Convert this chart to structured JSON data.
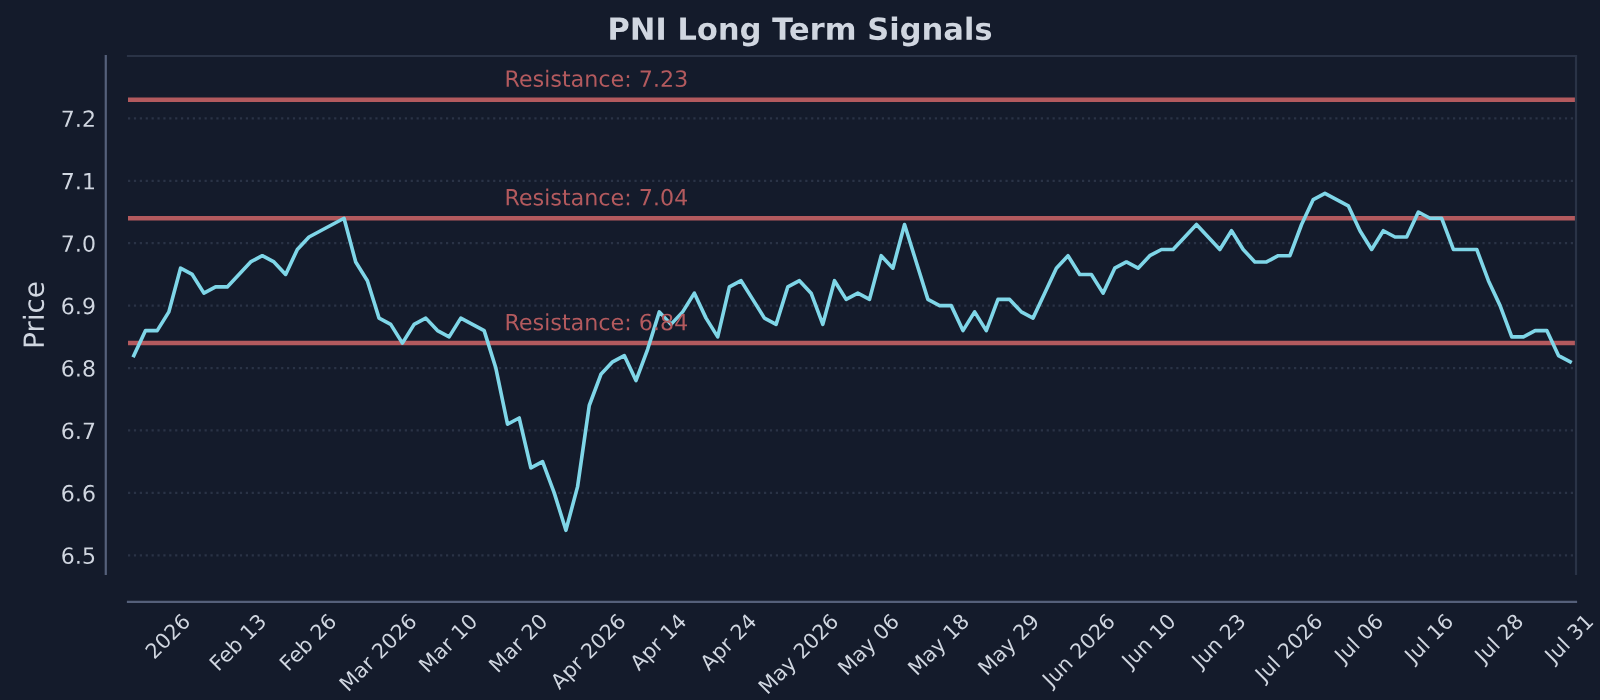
{
  "chart_data": {
    "type": "line",
    "title": "PNI Long Term Signals",
    "ylabel": "Price",
    "categories": [
      null,
      null,
      null,
      "2026",
      null,
      null,
      null,
      null,
      null,
      "Feb 13",
      null,
      null,
      null,
      null,
      null,
      "Feb 26",
      null,
      null,
      null,
      null,
      null,
      "Mar 2026",
      null,
      null,
      null,
      null,
      null,
      "Mar 10",
      null,
      null,
      null,
      null,
      null,
      "Mar 20",
      null,
      null,
      null,
      null,
      null,
      "Apr 2026",
      null,
      null,
      null,
      null,
      null,
      "Apr 14",
      null,
      null,
      null,
      null,
      null,
      "Apr 24",
      null,
      null,
      null,
      null,
      null,
      "May 2026",
      null,
      null,
      null,
      null,
      null,
      "May 06",
      null,
      null,
      null,
      null,
      null,
      "May 18",
      null,
      null,
      null,
      null,
      null,
      "May 29",
      null,
      null,
      null,
      null,
      null,
      "Jun 2026",
      null,
      null,
      null,
      null,
      null,
      "Jun 10",
      null,
      null,
      null,
      null,
      null,
      "Jun 23",
      null,
      null,
      null,
      null,
      null,
      "Jul 2026",
      null,
      null,
      null,
      null,
      null,
      "Jul 06",
      null,
      null,
      null,
      null,
      null,
      "Jul 16",
      null,
      null,
      null,
      null,
      null,
      "Jul 28",
      null,
      null,
      null,
      null,
      null,
      "Jul 31"
    ],
    "series": [
      {
        "color": "#7fd6e8",
        "values": [
          6.82,
          6.86,
          6.86,
          6.89,
          6.96,
          6.95,
          6.92,
          6.93,
          6.93,
          6.95,
          6.97,
          6.98,
          6.97,
          6.95,
          6.99,
          7.01,
          7.02,
          7.03,
          7.04,
          6.97,
          6.94,
          6.88,
          6.87,
          6.84,
          6.87,
          6.88,
          6.86,
          6.85,
          6.88,
          6.87,
          6.86,
          6.8,
          6.71,
          6.72,
          6.64,
          6.65,
          6.6,
          6.54,
          6.61,
          6.74,
          6.79,
          6.81,
          6.82,
          6.78,
          6.83,
          6.89,
          6.87,
          6.89,
          6.92,
          6.88,
          6.85,
          6.93,
          6.94,
          6.91,
          6.88,
          6.87,
          6.93,
          6.94,
          6.92,
          6.87,
          6.94,
          6.91,
          6.92,
          6.91,
          6.98,
          6.96,
          7.03,
          6.97,
          6.91,
          6.9,
          6.9,
          6.86,
          6.89,
          6.86,
          6.91,
          6.91,
          6.89,
          6.88,
          6.92,
          6.96,
          6.98,
          6.95,
          6.95,
          6.92,
          6.96,
          6.97,
          6.96,
          6.98,
          6.99,
          6.99,
          7.01,
          7.03,
          7.01,
          6.99,
          7.02,
          6.99,
          6.97,
          6.97,
          6.98,
          6.98,
          7.03,
          7.07,
          7.08,
          7.07,
          7.06,
          7.02,
          6.99,
          7.02,
          7.01,
          7.01,
          7.05,
          7.04,
          7.04,
          6.99,
          6.99,
          6.99,
          6.94,
          6.9,
          6.85,
          6.85,
          6.86,
          6.86,
          6.82,
          6.81
        ]
      }
    ],
    "ylim": [
      6.47,
      7.3
    ],
    "yticks": [
      {
        "value": 6.5,
        "label": "6.5"
      },
      {
        "value": 6.6,
        "label": "6.6"
      },
      {
        "value": 6.7,
        "label": "6.7"
      },
      {
        "value": 6.8,
        "label": "6.8"
      },
      {
        "value": 6.9,
        "label": "6.9"
      },
      {
        "value": 7.0,
        "label": "7.0"
      },
      {
        "value": 7.1,
        "label": "7.1"
      },
      {
        "value": 7.2,
        "label": "7.2"
      }
    ],
    "ref_lines": [
      {
        "axis": "y",
        "value": 7.23,
        "label": "Resistance: 7.23",
        "color": "#b35a5e"
      },
      {
        "axis": "y",
        "value": 7.04,
        "label": "Resistance: 7.04",
        "color": "#b35a5e"
      },
      {
        "axis": "y",
        "value": 6.84,
        "label": "Resistance: 6.84",
        "color": "#b35a5e"
      }
    ],
    "grid": "y",
    "legend": false,
    "marker": "none",
    "line_style": "solid"
  }
}
